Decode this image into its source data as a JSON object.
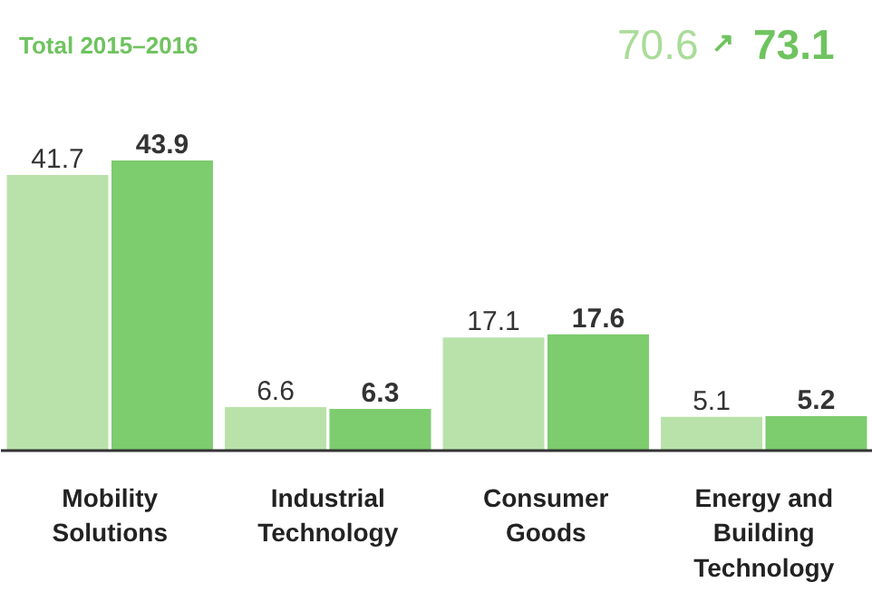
{
  "chart_data": {
    "type": "bar",
    "categories": [
      "Mobility Solutions",
      "Industrial Technology",
      "Consumer Goods",
      "Energy and Building Technology"
    ],
    "series": [
      {
        "color": "#b9e2aa",
        "values": [
          41.7,
          6.6,
          17.1,
          5.1
        ]
      },
      {
        "color": "#7dcc6e",
        "values": [
          43.9,
          6.3,
          17.6,
          5.2
        ]
      }
    ],
    "data_labels": true,
    "grid": false,
    "annotations": [
      "Total 2015–2016",
      "70.6",
      "↗",
      "73.1"
    ]
  }
}
